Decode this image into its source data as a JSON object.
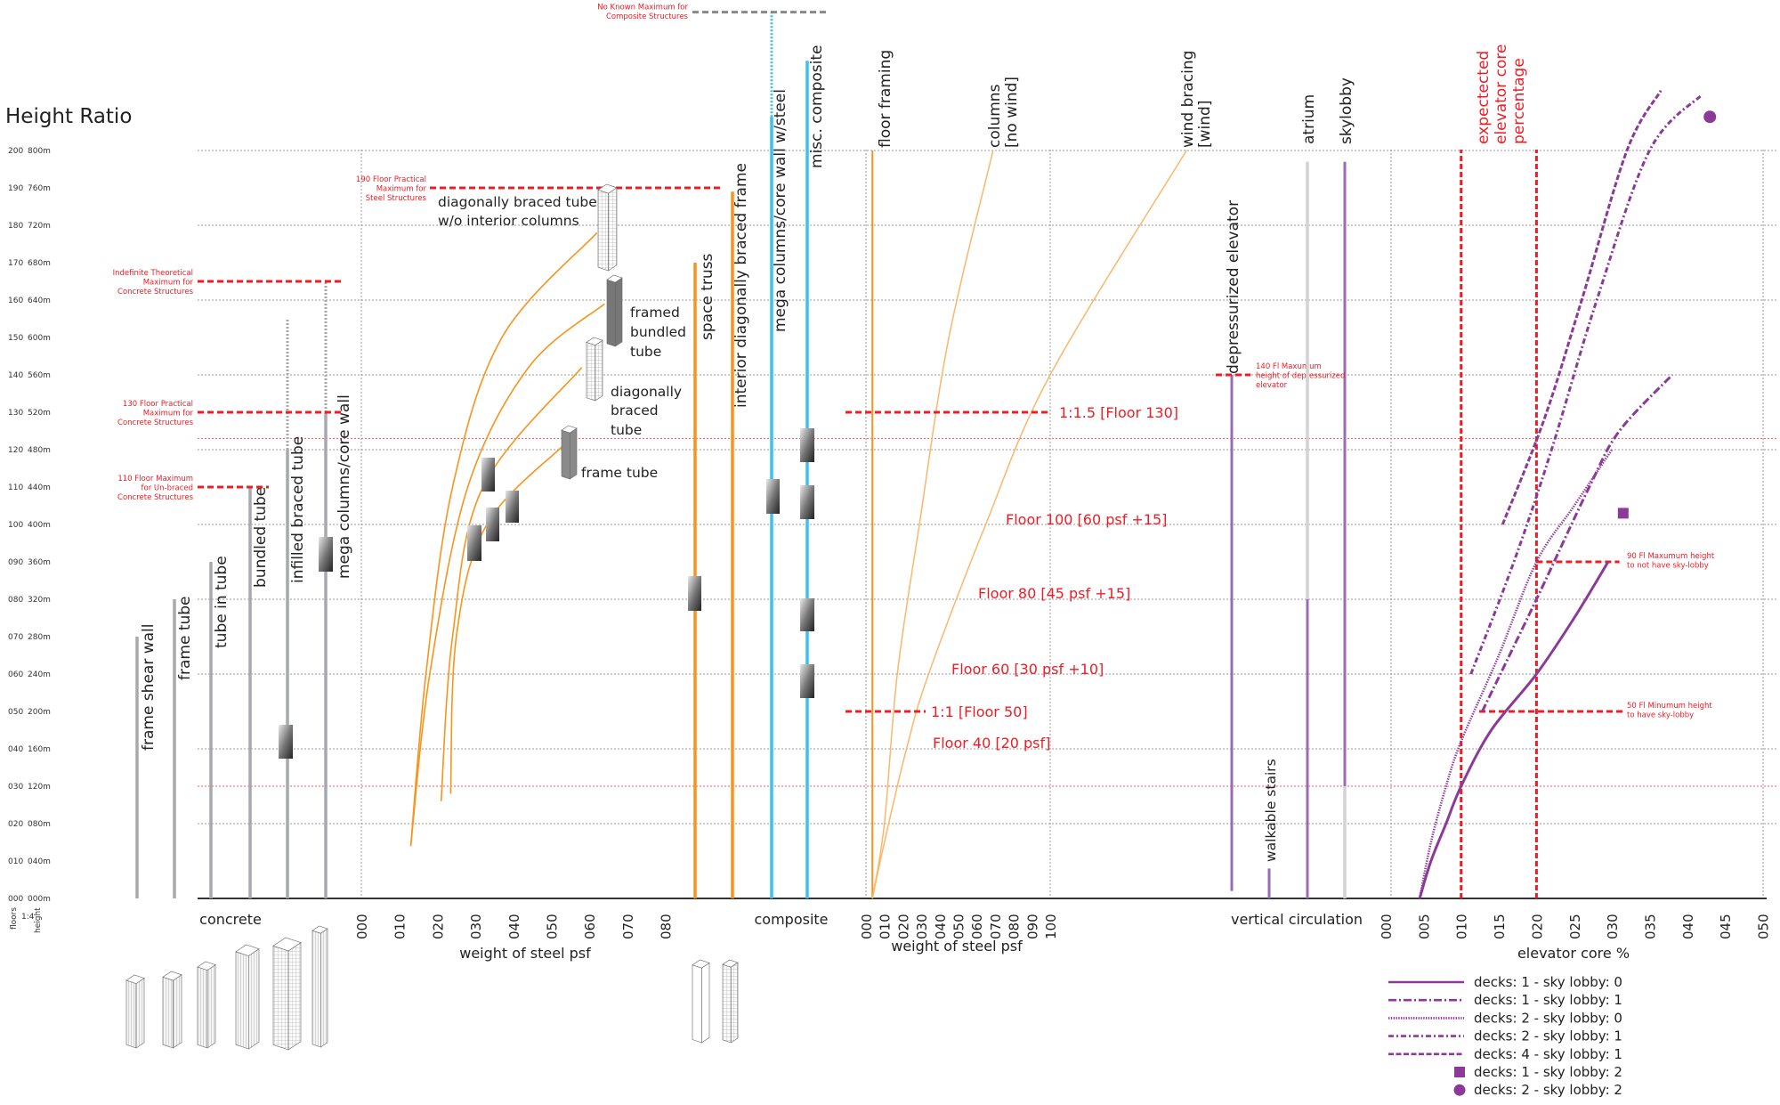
{
  "title": "Height Ratio",
  "colors": {
    "concrete": "#a7a9ac",
    "steel": "#f7941d",
    "steel_light": "#fbb66b",
    "composite": "#3cc1ef",
    "circulation": "#9b6bb5",
    "elevator": "#8b3a98",
    "limit": "#ee1c25",
    "grid": "#9a9a9a"
  },
  "chart_data": {
    "type": "line",
    "title": "Height Ratio",
    "y_axis": {
      "range_floors": [
        0,
        200
      ],
      "label_floors": "floors",
      "label_ratio": "1:4",
      "label_height": "height",
      "floor_ticks": [
        "000",
        "010",
        "020",
        "030",
        "040",
        "050",
        "060",
        "070",
        "080",
        "090",
        "100",
        "110",
        "120",
        "130",
        "140",
        "150",
        "160",
        "170",
        "180",
        "190",
        "200"
      ],
      "height_ticks": [
        "000m",
        "040m",
        "080m",
        "120m",
        "160m",
        "200m",
        "240m",
        "280m",
        "320m",
        "360m",
        "400m",
        "440m",
        "480m",
        "520m",
        "560m",
        "600m",
        "640m",
        "680m",
        "720m",
        "760m",
        "800m"
      ],
      "grid_every_floors": 20,
      "red_reference_floors": [
        30,
        123
      ]
    },
    "concrete": {
      "group_label": "concrete",
      "structures": [
        {
          "label": "frame shear wall",
          "max_floors": 70
        },
        {
          "label": "frame tube",
          "max_floors": 80
        },
        {
          "label": "tube in tube",
          "max_floors": 90
        },
        {
          "label": "bundled tube",
          "max_floors": 110
        },
        {
          "label": "infilled braced tube",
          "max_floors": 120,
          "theoretical_floors": 155
        },
        {
          "label": "mega columns/core wall",
          "max_floors": 130,
          "theoretical_floors": 165
        }
      ],
      "limits": [
        {
          "floors": 165,
          "lines": [
            "Indefinite Theoretical",
            "Maximum for",
            "Concrete Structures"
          ]
        },
        {
          "floors": 130,
          "lines": [
            "130 Floor Practical",
            "Maximum for",
            "Concrete Structures"
          ]
        },
        {
          "floors": 110,
          "lines": [
            "110 Floor Maximum",
            "for Un-braced",
            "Concrete Structures"
          ]
        }
      ]
    },
    "steel": {
      "xlabel": "weight of steel psf",
      "xlim": [
        0,
        80
      ],
      "x_ticks": [
        "000",
        "010",
        "020",
        "030",
        "040",
        "050",
        "060",
        "070",
        "080"
      ],
      "limit": {
        "floors": 190,
        "lines": [
          "190 Floor Practical",
          "Maximum for",
          "Steel Structures"
        ]
      },
      "systems": [
        {
          "label_lines": [
            "diagonally braced tube",
            "w/o interior columns"
          ],
          "points": [
            [
              13,
              14
            ],
            [
              17,
              60
            ],
            [
              24,
              110
            ],
            [
              37,
              150
            ],
            [
              62,
              178
            ]
          ]
        },
        {
          "label_lines": [
            "framed",
            "bundled",
            "tube"
          ],
          "points": [
            [
              13,
              14
            ],
            [
              18,
              60
            ],
            [
              28,
              110
            ],
            [
              44,
              142
            ],
            [
              64,
              159
            ]
          ]
        },
        {
          "label_lines": [
            "diagonally",
            "braced",
            "tube"
          ],
          "points": [
            [
              21,
              26
            ],
            [
              24,
              70
            ],
            [
              32,
              110
            ],
            [
              58,
              142
            ]
          ]
        },
        {
          "label_lines": [
            "frame tube"
          ],
          "points": [
            [
              23.5,
              28
            ],
            [
              25,
              70
            ],
            [
              33,
              100
            ],
            [
              53,
              121
            ]
          ]
        }
      ],
      "vertical_systems": [
        {
          "label": "space truss",
          "max_floors": 170
        },
        {
          "label": "interior diagonally braced frame",
          "max_floors": 189
        }
      ]
    },
    "composite": {
      "group_label": "composite",
      "systems": [
        {
          "label": "mega columns/core wall w/steel",
          "max_floors": 209,
          "theoretical_floors": 237
        },
        {
          "label": "misc. composite",
          "max_floors": 224
        }
      ],
      "limit": {
        "floors": 237,
        "lines": [
          "No Known Maximum for",
          "Composite Structures"
        ]
      }
    },
    "steel_weight": {
      "xlabel": "weight of steel psf",
      "xlim": [
        0,
        100
      ],
      "x_ticks": [
        "000",
        "010",
        "020",
        "030",
        "040",
        "050",
        "060",
        "070",
        "080",
        "090",
        "100"
      ],
      "series": [
        {
          "label_lines": [
            "floor framing"
          ],
          "points": [
            [
              3.5,
              0
            ],
            [
              3.5,
              200
            ]
          ]
        },
        {
          "label_lines": [
            "columns",
            "[no wind]"
          ],
          "points": [
            [
              3.5,
              0
            ],
            [
              10,
              20
            ],
            [
              17,
              60
            ],
            [
              29,
              100
            ],
            [
              45,
              150
            ],
            [
              69,
              200
            ]
          ]
        },
        {
          "label_lines": [
            "wind bracing",
            "[wind]"
          ],
          "points": [
            [
              3.5,
              0
            ],
            [
              10,
              15
            ],
            [
              22,
              40
            ],
            [
              34,
              60
            ],
            [
              65,
              100
            ],
            [
              100,
              140
            ],
            [
              174,
              200
            ]
          ]
        }
      ],
      "ratios": [
        {
          "label": "1:1.5 [Floor 130]",
          "floors": 130
        },
        {
          "label": "1:1 [Floor 50]",
          "floors": 50
        }
      ],
      "annotations": [
        "Floor 100 [60 psf +15]",
        "Floor 80 [45 psf +15]",
        "Floor 60 [30 psf +10]",
        "Floor 40 [20 psf]"
      ]
    },
    "vertical_circulation": {
      "group_label": "vertical circulation",
      "systems": [
        {
          "label": "depressurized elevator",
          "from_floors": 2,
          "to_floors": 140
        },
        {
          "label": "walkable stairs",
          "from_floors": 0,
          "to_floors": 8
        },
        {
          "label": "atrium",
          "from_floors": 0,
          "to_floors": 197,
          "highlight_to_floors": 80
        },
        {
          "label": "skylobby",
          "from_floors": 0,
          "to_floors": 197,
          "highlight_from_floors": 30
        }
      ],
      "limit": {
        "floors": 140,
        "lines": [
          "140 Fl Maxumum",
          "height of depressurized",
          "elevator"
        ]
      }
    },
    "elevator_core": {
      "xlabel": "elevator core %",
      "xlim": [
        0,
        50
      ],
      "x_ticks": [
        "000",
        "005",
        "010",
        "015",
        "020",
        "025",
        "030",
        "035",
        "040",
        "045",
        "050"
      ],
      "expected_range_percent": [
        10,
        20
      ],
      "expected_label_lines": [
        "expectected",
        "elevator core",
        "percentage"
      ],
      "series": [
        {
          "name": "decks: 1 - sky lobby: 0",
          "style": "solid",
          "points": [
            [
              4.5,
              0
            ],
            [
              6,
              10
            ],
            [
              8,
              20
            ],
            [
              10,
              30
            ],
            [
              14,
              45
            ],
            [
              20,
              60
            ],
            [
              25,
              75
            ],
            [
              29.5,
              90
            ]
          ]
        },
        {
          "name": "decks: 1 - sky lobby: 1",
          "style": "dash-dot",
          "points": [
            [
              12.8,
              50
            ],
            [
              20,
              80
            ],
            [
              27,
              110
            ],
            [
              31,
              125
            ],
            [
              38,
              140
            ]
          ]
        },
        {
          "name": "decks: 2 - sky lobby: 0",
          "style": "dotted",
          "points": [
            [
              4.5,
              0
            ],
            [
              6,
              15
            ],
            [
              8,
              30
            ],
            [
              10,
              42
            ],
            [
              15,
              65
            ],
            [
              20,
              90
            ],
            [
              25,
              105
            ],
            [
              30,
              120
            ]
          ]
        },
        {
          "name": "decks: 2 - sky lobby: 1",
          "style": "dash-dot-short",
          "points": [
            [
              11.3,
              60
            ],
            [
              17,
              90
            ],
            [
              22,
              120
            ],
            [
              28,
              160
            ],
            [
              35,
              200
            ],
            [
              42,
              215
            ]
          ]
        },
        {
          "name": "decks: 4 - sky lobby: 1",
          "style": "dashed",
          "points": [
            [
              15.5,
              100
            ],
            [
              21,
              128
            ],
            [
              26,
              160
            ],
            [
              32,
              200
            ],
            [
              36.5,
              216
            ]
          ]
        },
        {
          "name": "decks: 1 - sky lobby: 2",
          "style": "square",
          "points": [
            [
              31.5,
              103
            ]
          ]
        },
        {
          "name": "decks: 2 - sky lobby: 2",
          "style": "circle",
          "points": [
            [
              43,
              209
            ]
          ]
        }
      ],
      "limits": [
        {
          "floors": 90,
          "from_percent": 20,
          "to_percent": 31,
          "lines": [
            "90 Fl Maxumum height",
            "to not have sky-lobby"
          ]
        },
        {
          "floors": 50,
          "from_percent": 12.4,
          "to_percent": 31.5,
          "lines": [
            "50 Fl Minumum height",
            "to have sky-lobby"
          ]
        }
      ],
      "legend_placement": "bottom-right"
    }
  }
}
